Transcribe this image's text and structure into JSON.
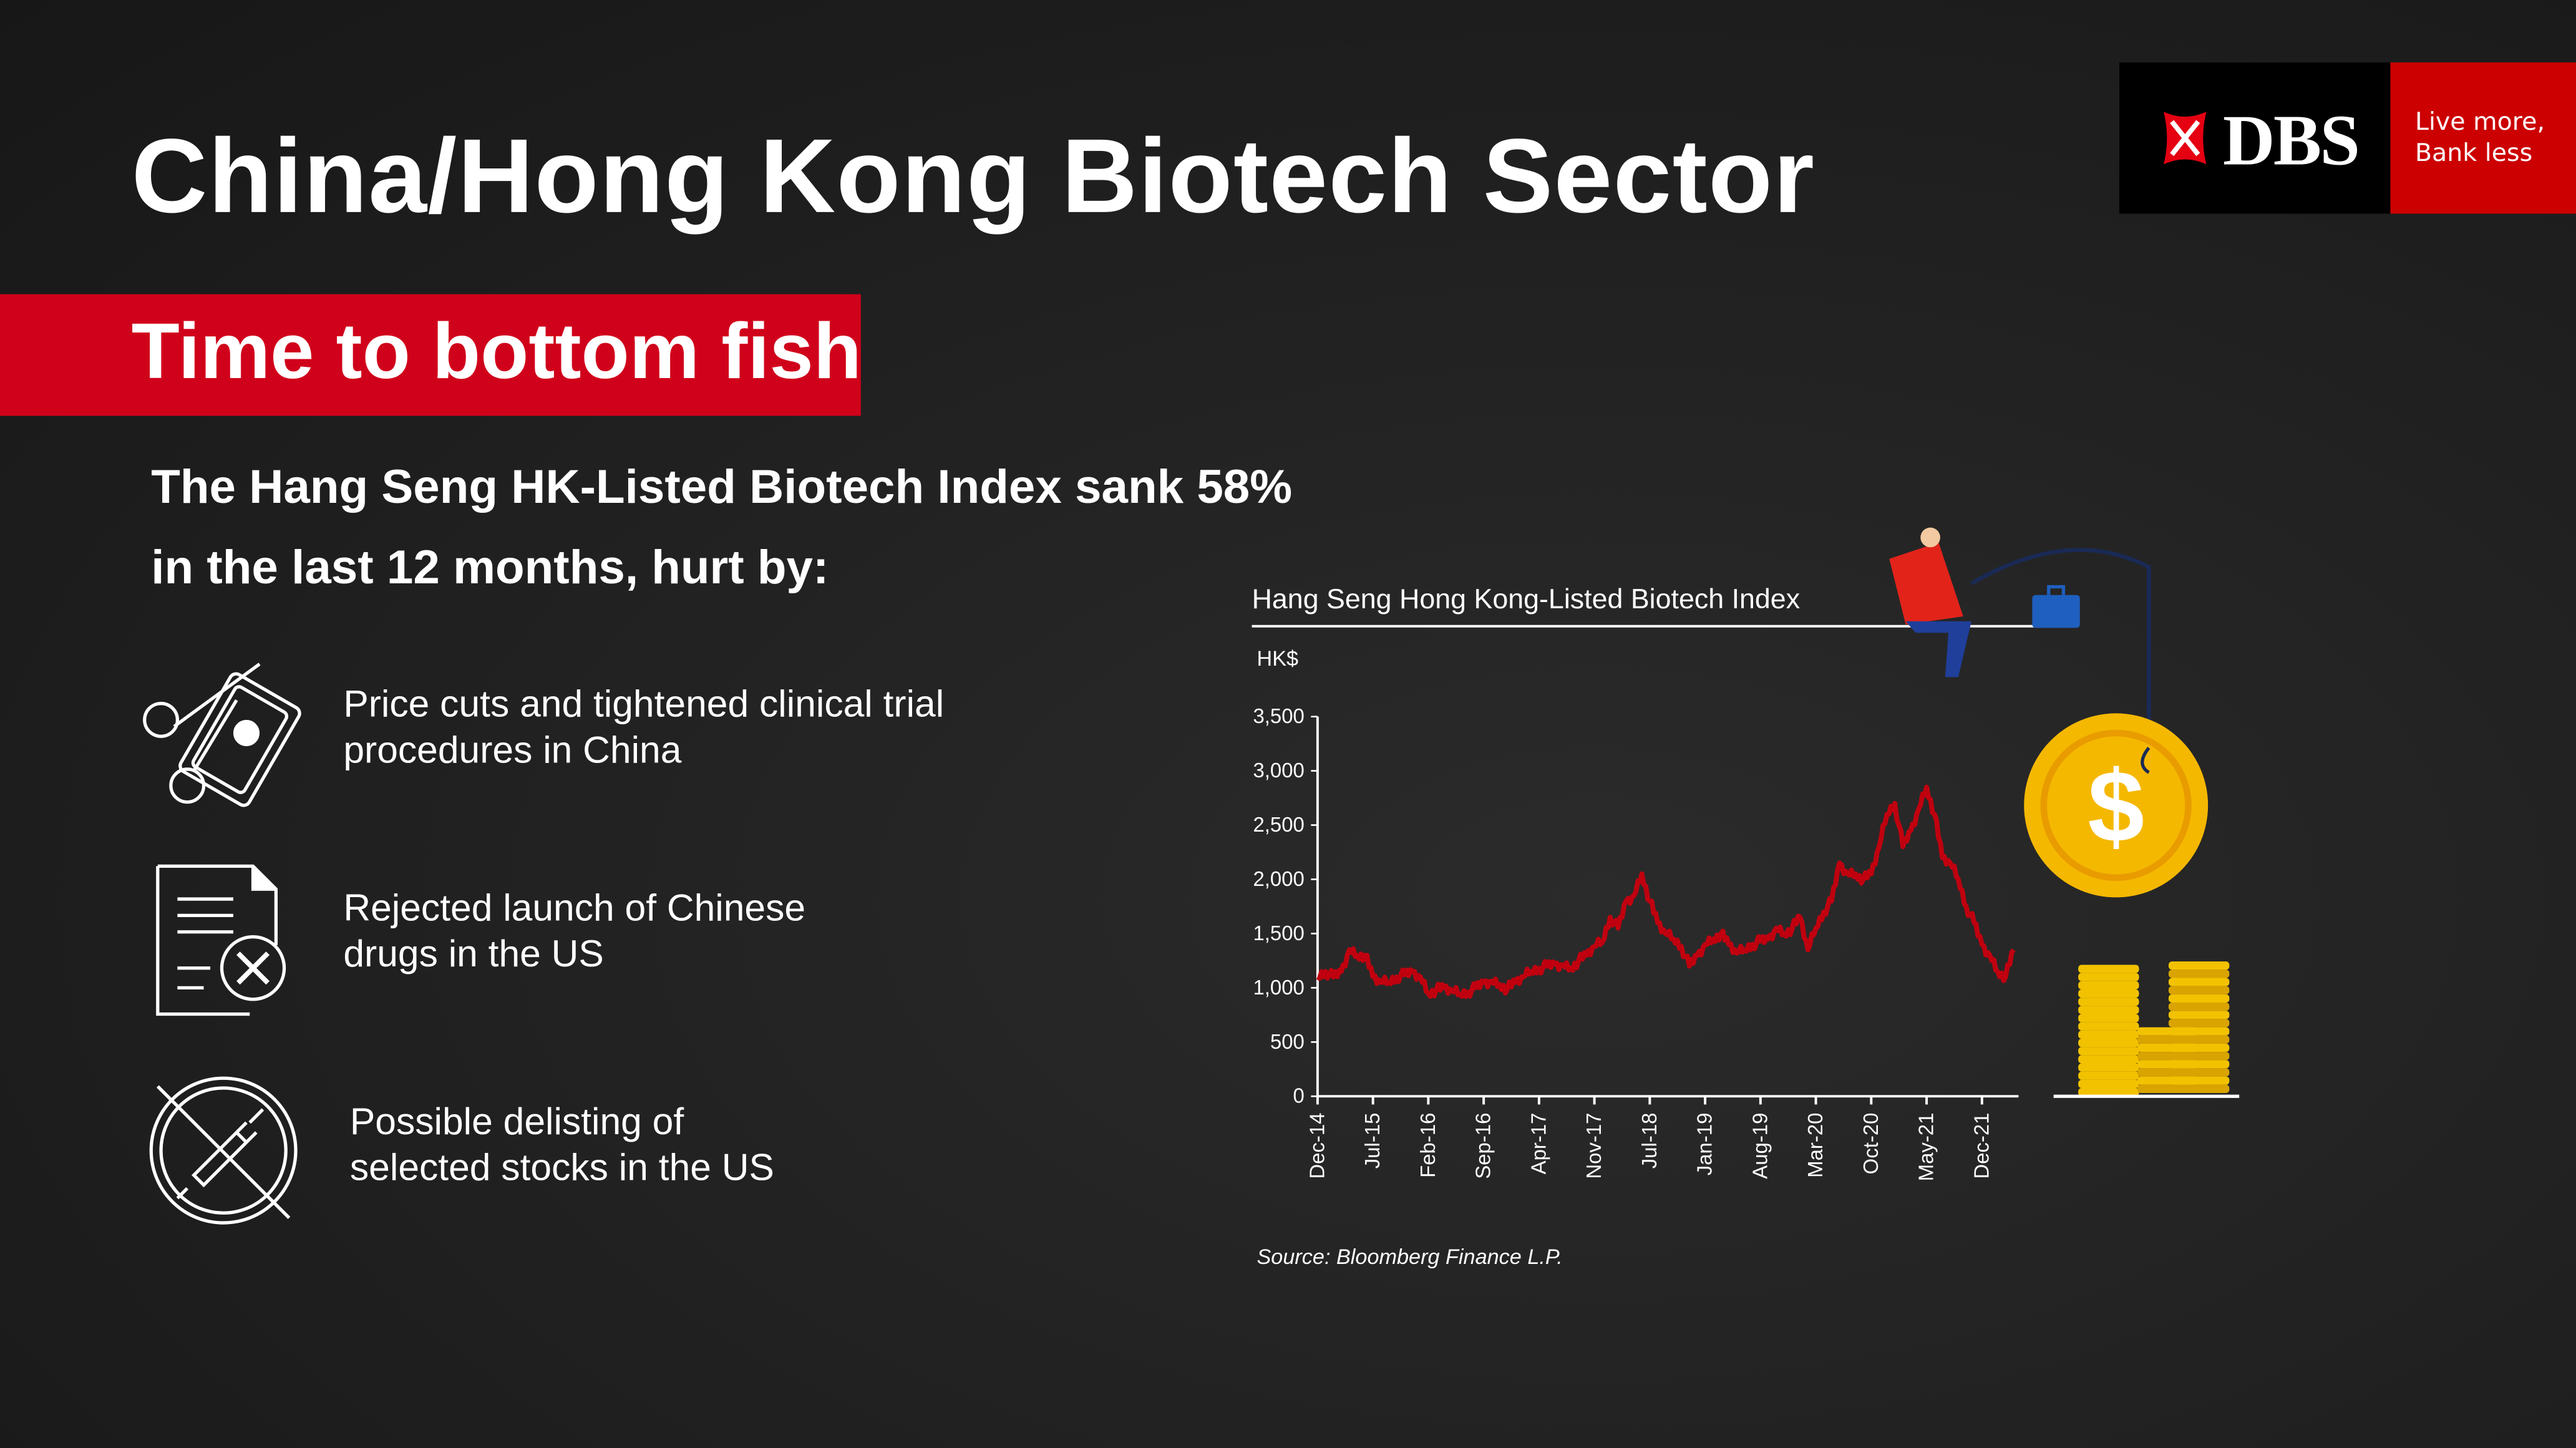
{
  "header": {
    "title": "China/Hong Kong Biotech Sector",
    "banner": "Time to bottom fish"
  },
  "logo": {
    "brand": "DBS",
    "tagline_line1": "Live more,",
    "tagline_line2": "Bank less"
  },
  "intro": {
    "line1": "The Hang Seng HK-Listed Biotech Index sank 58%",
    "line2": "in the last 12 months, hurt by:"
  },
  "reasons": [
    {
      "icon": "price-cut-scissors-icon",
      "line1": "Price cuts and tightened clinical trial",
      "line2": "procedures in China"
    },
    {
      "icon": "rejected-document-icon",
      "line1": "Rejected launch of Chinese",
      "line2": "drugs in the US"
    },
    {
      "icon": "no-syringe-icon",
      "line1": "Possible delisting of",
      "line2": "selected stocks in the US"
    }
  ],
  "colors": {
    "accent": "#d0021b",
    "line": "#c0000f",
    "coin": "#f5b800"
  },
  "chart_data": {
    "type": "line",
    "title": "Hang Seng Hong Kong-Listed Biotech Index",
    "ylabel": "HK$",
    "xlabel": "",
    "ylim": [
      0,
      3500
    ],
    "yticks": [
      "0",
      "500",
      "1,000",
      "1,500",
      "2,000",
      "2,500",
      "3,000",
      "3,500"
    ],
    "ytick_values": [
      0,
      500,
      1000,
      1500,
      2000,
      2500,
      3000,
      3500
    ],
    "xticks": [
      "Dec-14",
      "Jul-15",
      "Feb-16",
      "Sep-16",
      "Apr-17",
      "Nov-17",
      "Jul-18",
      "Jan-19",
      "Aug-19",
      "Mar-20",
      "Oct-20",
      "May-21",
      "Dec-21"
    ],
    "x_months_per_tick": 7,
    "series": [
      {
        "name": "Hang Seng Hong Kong-Listed Biotech Index",
        "values": [
          1100,
          1150,
          1100,
          1150,
          1350,
          1300,
          1300,
          1100,
          1050,
          1050,
          1100,
          1120,
          1150,
          1100,
          950,
          980,
          1000,
          970,
          940,
          960,
          1000,
          1050,
          1060,
          1030,
          990,
          1050,
          1100,
          1150,
          1180,
          1200,
          1220,
          1210,
          1180,
          1250,
          1300,
          1380,
          1420,
          1650,
          1550,
          1800,
          1850,
          2050,
          1800,
          1600,
          1500,
          1450,
          1380,
          1200,
          1300,
          1400,
          1450,
          1500,
          1400,
          1320,
          1350,
          1400,
          1430,
          1450,
          1550,
          1500,
          1550,
          1650,
          1350,
          1550,
          1700,
          1800,
          2150,
          2050,
          2050,
          2000,
          2050,
          2300,
          2600,
          2700,
          2300,
          2450,
          2650,
          2850,
          2600,
          2200,
          2150,
          2000,
          1750,
          1600,
          1400,
          1300,
          1150,
          1100,
          1350
        ]
      }
    ],
    "source": "Source: Bloomberg Finance L.P.",
    "grid": false
  }
}
